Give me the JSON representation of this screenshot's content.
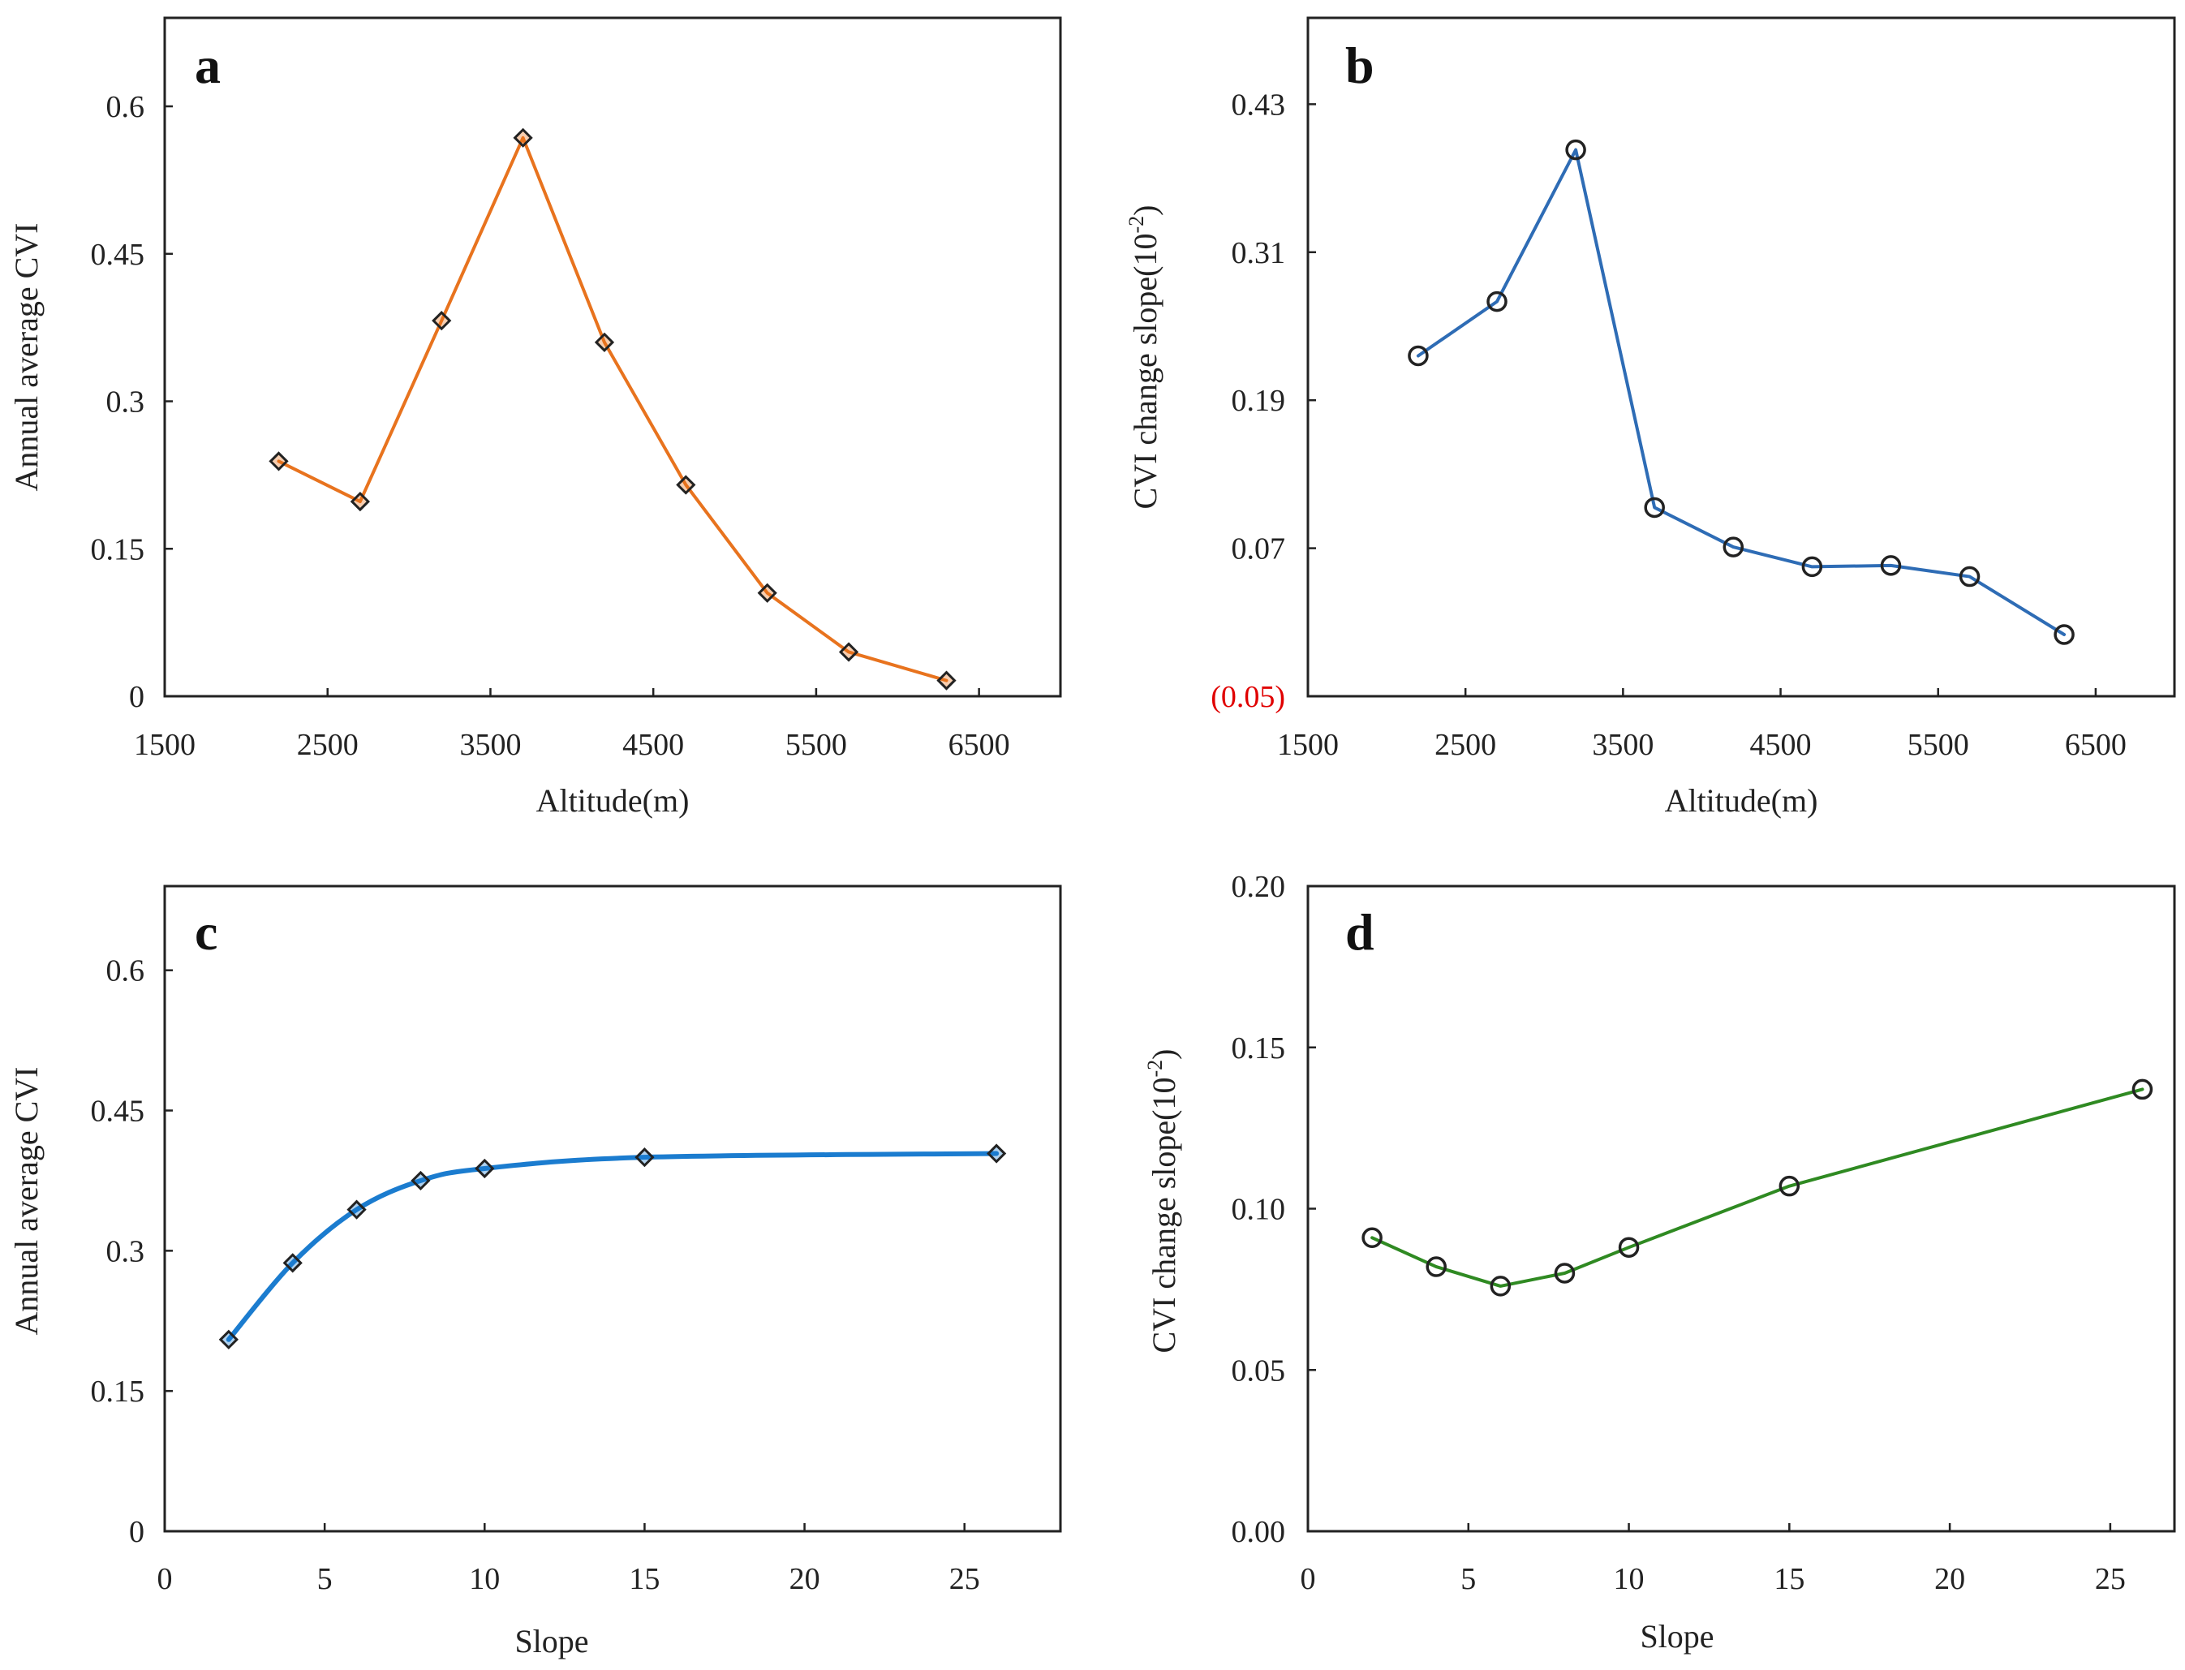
{
  "chart_data": [
    {
      "panel": "a",
      "type": "line",
      "marker": "diamond",
      "color": "#E8731E",
      "x": [
        2200,
        2700,
        3200,
        3700,
        4200,
        4700,
        5200,
        5700,
        6300
      ],
      "y": [
        0.239,
        0.198,
        0.382,
        0.568,
        0.36,
        0.215,
        0.105,
        0.045,
        0.016
      ],
      "xlabel": "Altitude(m)",
      "ylabel": "Annual average CVI",
      "xlim": [
        1500,
        7000
      ],
      "ylim": [
        0,
        0.69
      ],
      "xticks": [
        1500,
        2500,
        3500,
        4500,
        5500,
        6500
      ],
      "xtick_labels": [
        "1500",
        "2500",
        "3500",
        "4500",
        "5500",
        "6500"
      ],
      "yticks": [
        0,
        0.15,
        0.3,
        0.45,
        0.6
      ],
      "ytick_labels": [
        "0",
        "0.15",
        "0.3",
        "0.45",
        "0.6"
      ],
      "ytick_colors": [
        "#222",
        "#222",
        "#222",
        "#222",
        "#222"
      ],
      "smooth": false
    },
    {
      "panel": "b",
      "type": "line",
      "marker": "circle",
      "color": "#2E6CB5",
      "x": [
        2200,
        2700,
        3200,
        3700,
        4200,
        4700,
        5200,
        5700,
        6300
      ],
      "y": [
        0.226,
        0.27,
        0.393,
        0.103,
        0.071,
        0.055,
        0.056,
        0.047,
        0.0
      ],
      "xlabel": "Altitude(m)",
      "ylabel_main": "CVI change slope(10",
      "ylabel_sup": "-2",
      "ylabel_end": ")",
      "xlim": [
        1500,
        7000
      ],
      "ylim": [
        -0.05,
        0.5
      ],
      "xticks": [
        1500,
        2500,
        3500,
        4500,
        5500,
        6500
      ],
      "xtick_labels": [
        "1500",
        "2500",
        "3500",
        "4500",
        "5500",
        "6500"
      ],
      "yticks": [
        -0.05,
        0.07,
        0.19,
        0.31,
        0.43
      ],
      "ytick_labels": [
        "(0.05)",
        "0.07",
        "0.19",
        "0.31",
        "0.43"
      ],
      "ytick_colors": [
        "#E00000",
        "#222",
        "#222",
        "#222",
        "#222"
      ],
      "smooth": false
    },
    {
      "panel": "c",
      "type": "line",
      "marker": "diamond",
      "color": "#1B7CCF",
      "x": [
        2,
        4,
        6,
        8,
        10,
        15,
        26
      ],
      "y": [
        0.205,
        0.287,
        0.344,
        0.375,
        0.388,
        0.4,
        0.404
      ],
      "xlabel": "Slope",
      "ylabel": "Annual average CVI",
      "xlim": [
        0,
        28
      ],
      "ylim": [
        0,
        0.69
      ],
      "xticks": [
        0,
        5,
        10,
        15,
        20,
        25
      ],
      "xtick_labels": [
        "0",
        "5",
        "10",
        "15",
        "20",
        "25"
      ],
      "yticks": [
        0,
        0.15,
        0.3,
        0.45,
        0.6
      ],
      "ytick_labels": [
        "0",
        "0.15",
        "0.3",
        "0.45",
        "0.6"
      ],
      "ytick_colors": [
        "#222",
        "#222",
        "#222",
        "#222",
        "#222"
      ],
      "smooth": true
    },
    {
      "panel": "d",
      "type": "line",
      "marker": "circle",
      "color": "#2F8A22",
      "x": [
        2,
        4,
        6,
        8,
        10,
        15,
        26
      ],
      "y": [
        0.091,
        0.082,
        0.076,
        0.08,
        0.088,
        0.107,
        0.137
      ],
      "xlabel": "Slope",
      "ylabel_main": "CVI change slope(10",
      "ylabel_sup": "-2",
      "ylabel_end": ")",
      "xlim": [
        0,
        27
      ],
      "ylim": [
        0,
        0.2
      ],
      "xticks": [
        0,
        5,
        10,
        15,
        20,
        25
      ],
      "xtick_labels": [
        "0",
        "5",
        "10",
        "15",
        "20",
        "25"
      ],
      "yticks": [
        0,
        0.05,
        0.1,
        0.15,
        0.2
      ],
      "ytick_labels": [
        "0.00",
        "0.05",
        "0.10",
        "0.15",
        "0.20"
      ],
      "ytick_colors": [
        "#222",
        "#222",
        "#222",
        "#222",
        "#222"
      ],
      "smooth": false
    }
  ]
}
